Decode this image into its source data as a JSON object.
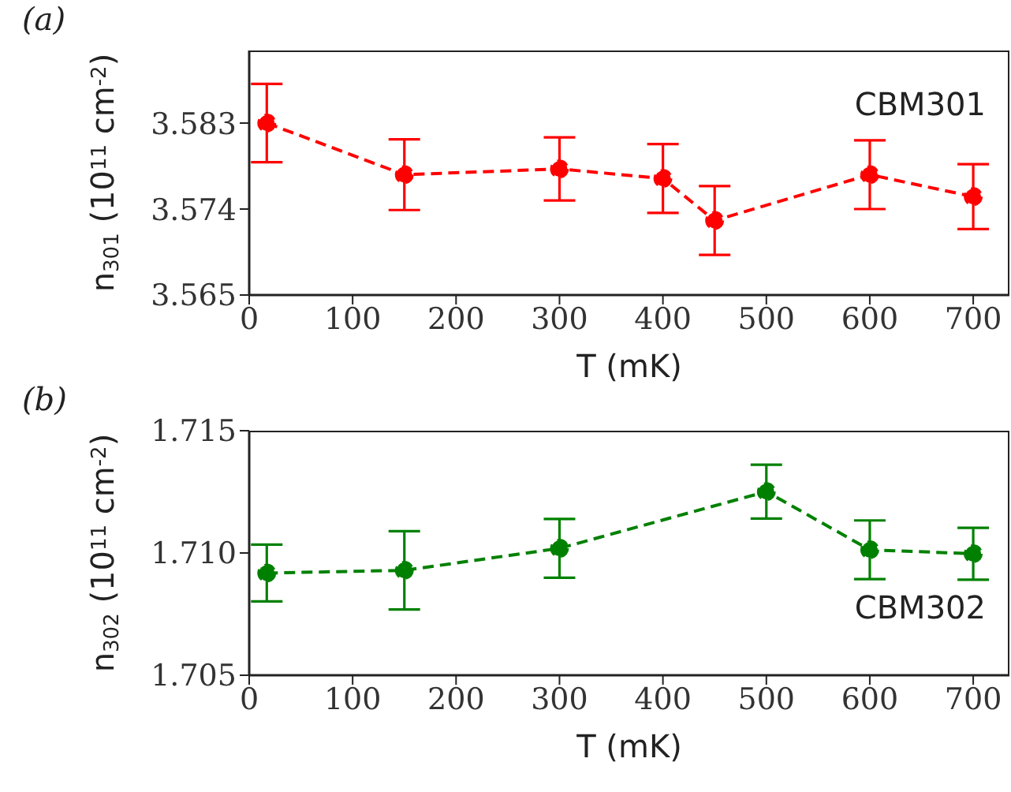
{
  "chart_data": [
    {
      "type": "line",
      "title": "(a)",
      "xlabel": "T (mK)",
      "ylabel": "n$_{301}$ (10$^{11}$ cm$^{-2}$)",
      "x": [
        17,
        150,
        300,
        400,
        450,
        600,
        700
      ],
      "series": [
        {
          "color": "#ff0000",
          "values": [
            3.583,
            3.5776,
            3.5782,
            3.5772,
            3.5728,
            3.5776,
            3.5753
          ],
          "errors": [
            0.0041,
            0.0037,
            0.0033,
            0.0036,
            0.0036,
            0.0036,
            0.0034
          ]
        }
      ],
      "xlim": [
        0,
        735
      ],
      "xticks": [
        0,
        100,
        200,
        300,
        400,
        500,
        600,
        700
      ],
      "ylim": [
        3.565,
        3.5906
      ],
      "yticks": [
        3.565,
        3.574,
        3.583
      ],
      "annotations": [
        "CBM301"
      ],
      "marker": "circle",
      "line_style": "dashed",
      "legend": false,
      "grid": false
    },
    {
      "type": "line",
      "title": "(b)",
      "xlabel": "T (mK)",
      "ylabel": "n$_{302}$ (10$^{11}$ cm$^{-2}$)",
      "x": [
        17,
        150,
        300,
        500,
        600,
        700
      ],
      "series": [
        {
          "color": "#008000",
          "values": [
            1.70918,
            1.70929,
            1.71019,
            1.71251,
            1.71013,
            1.70997
          ],
          "errors": [
            0.00116,
            0.0016,
            0.0012,
            0.0011,
            0.0012,
            0.00106
          ]
        }
      ],
      "xlim": [
        0,
        735
      ],
      "xticks": [
        0,
        100,
        200,
        300,
        400,
        500,
        600,
        700
      ],
      "ylim": [
        1.705,
        1.715
      ],
      "yticks": [
        1.705,
        {
          "value": 1.71,
          "label": "1.710"
        },
        1.715
      ],
      "annotations": [
        "CBM302"
      ],
      "marker": "circle",
      "line_style": "dashed",
      "legend": false,
      "grid": false
    }
  ]
}
